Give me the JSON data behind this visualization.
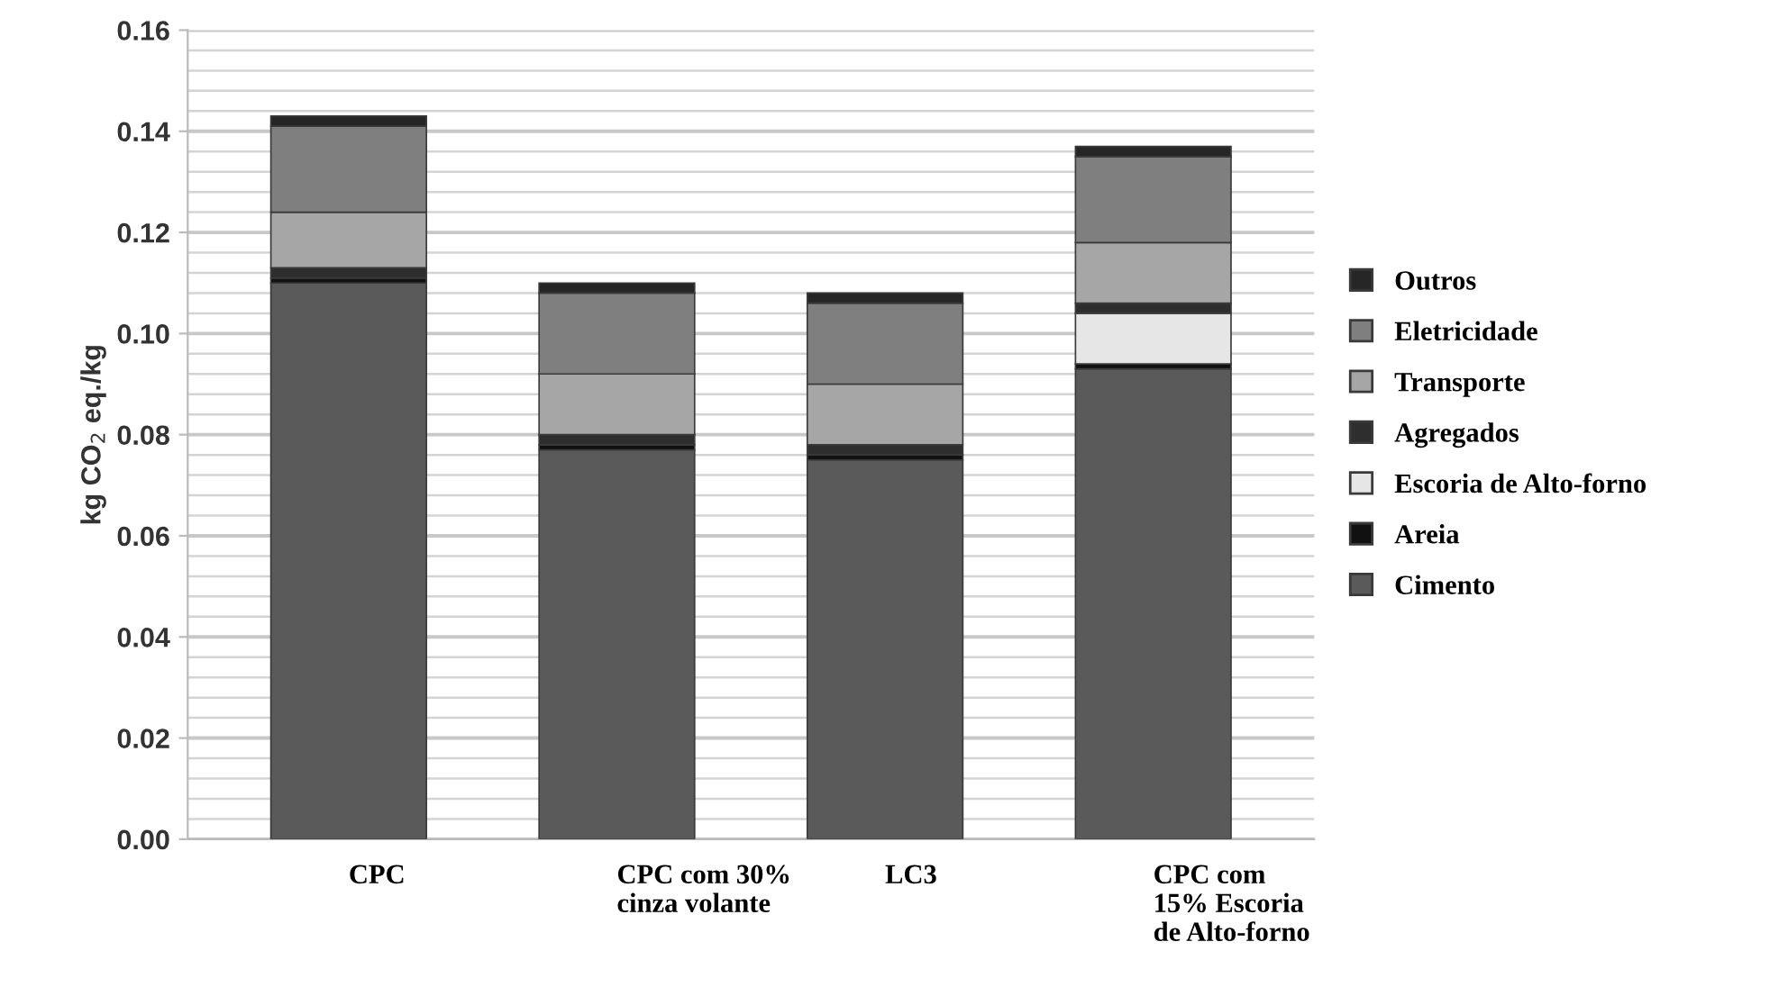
{
  "chart_data": {
    "type": "bar",
    "stacked": true,
    "ylabel": "kg CO$_{2}$ eq./kg",
    "categories": [
      "CPC",
      "CPC com 30%\ncinza volante",
      "LC3",
      "CPC com\n15% Escoria\nde Alto-forno"
    ],
    "series": [
      {
        "name": "Cimento",
        "color": "#5a5a5a",
        "values": [
          0.11,
          0.077,
          0.075,
          0.093
        ]
      },
      {
        "name": "Areia",
        "color": "#111111",
        "values": [
          0.001,
          0.001,
          0.001,
          0.001
        ]
      },
      {
        "name": "Escoria de Alto-forno",
        "color": "#e6e6e6",
        "values": [
          0,
          0,
          0,
          0.01
        ]
      },
      {
        "name": "Agregados",
        "color": "#2e2e2e",
        "values": [
          0.002,
          0.002,
          0.002,
          0.002
        ]
      },
      {
        "name": "Transporte",
        "color": "#a6a6a6",
        "values": [
          0.011,
          0.012,
          0.012,
          0.012
        ]
      },
      {
        "name": "Eletricidade",
        "color": "#7f7f7f",
        "values": [
          0.017,
          0.016,
          0.016,
          0.017
        ]
      },
      {
        "name": "Outros",
        "color": "#262626",
        "values": [
          0.002,
          0.002,
          0.002,
          0.002
        ]
      }
    ],
    "ylim": [
      0,
      0.16
    ],
    "yticks": [
      {
        "value": 0,
        "label": "0.00"
      },
      {
        "value": 0.02,
        "label": "0.02"
      },
      {
        "value": 0.04,
        "label": "0.04"
      },
      {
        "value": 0.06,
        "label": "0.06"
      },
      {
        "value": 0.08,
        "label": "0.08"
      },
      {
        "value": 0.1,
        "label": "0.10"
      },
      {
        "value": 0.12,
        "label": "0.12"
      },
      {
        "value": 0.14,
        "label": "0.14"
      },
      {
        "value": 0.16,
        "label": "0.16"
      }
    ],
    "grid": "y",
    "legend": "right"
  }
}
